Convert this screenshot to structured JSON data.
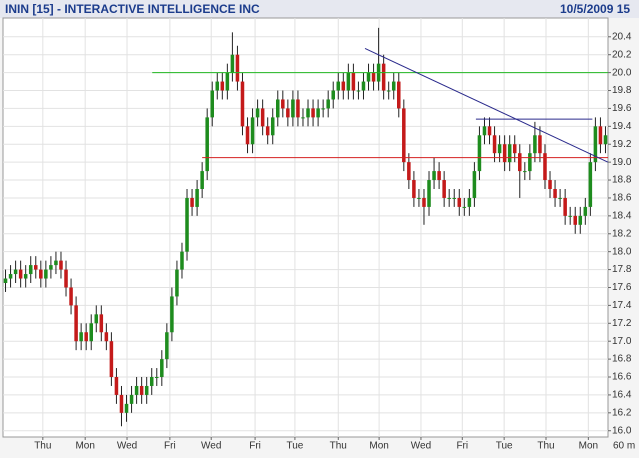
{
  "chart_data": {
    "type": "candlestick",
    "title": "ININ [15] - INTERACTIVE INTELLIGENCE INC",
    "date_label": "10/5/2009 15",
    "interval_label": "60 m",
    "up_color": "#1e8c1e",
    "down_color": "#c41a1a",
    "wick_color": "#222222",
    "grid": true,
    "xlim": [
      0,
      120
    ],
    "ylim": [
      15.93,
      20.61
    ],
    "yticks": [
      {
        "value": 16,
        "label": "16.0"
      },
      16.2,
      16.4,
      16.6,
      16.8,
      {
        "value": 17,
        "label": "17.0"
      },
      17.2,
      17.4,
      17.6,
      17.8,
      {
        "value": 18,
        "label": "18.0"
      },
      18.2,
      18.4,
      18.6,
      18.8,
      {
        "value": 19,
        "label": "19.0"
      },
      19.2,
      19.4,
      19.6,
      19.8,
      {
        "value": 20,
        "label": "20.0"
      },
      20.2,
      20.4
    ],
    "xticks": [
      {
        "value": 7.9,
        "label": "Thu"
      },
      {
        "value": 16.3,
        "label": "Mon"
      },
      {
        "value": 24.6,
        "label": "Wed"
      },
      {
        "value": 33.1,
        "label": "Fri"
      },
      {
        "value": 41.3,
        "label": "Wed"
      },
      {
        "value": 50,
        "label": "Fri"
      },
      {
        "value": 57.9,
        "label": "Tue"
      },
      {
        "value": 66.5,
        "label": "Thu"
      },
      {
        "value": 74.6,
        "label": "Mon"
      },
      {
        "value": 82.9,
        "label": "Wed"
      },
      {
        "value": 91.1,
        "label": "Fri"
      },
      {
        "value": 99.4,
        "label": "Tue"
      },
      {
        "value": 107.7,
        "label": "Thu"
      },
      {
        "value": 116.1,
        "label": "Mon"
      }
    ],
    "lines": [
      {
        "color": "#22b822",
        "x": [
          29.6,
          120
        ],
        "y": [
          20.0,
          20.0
        ]
      },
      {
        "color": "#d42020",
        "x": [
          39.5,
          120
        ],
        "y": [
          19.05,
          19.05
        ]
      },
      {
        "color": "#2a2a8c",
        "x": [
          93.8,
          116.9
        ],
        "y": [
          19.48,
          19.48
        ]
      },
      {
        "color": "#2a2a8c",
        "x": [
          71.8,
          120
        ],
        "y": [
          20.27,
          19.0
        ]
      }
    ],
    "series": [
      {
        "ohlc": [
          [
            17.65,
            17.8,
            17.55,
            17.7
          ],
          [
            17.7,
            17.85,
            17.6,
            17.75
          ],
          [
            17.75,
            17.9,
            17.65,
            17.8
          ],
          [
            17.8,
            17.9,
            17.6,
            17.7
          ],
          [
            17.7,
            17.85,
            17.6,
            17.75
          ],
          [
            17.75,
            17.95,
            17.65,
            17.85
          ],
          [
            17.85,
            17.95,
            17.7,
            17.8
          ],
          [
            17.8,
            17.9,
            17.6,
            17.7
          ],
          [
            17.7,
            17.9,
            17.6,
            17.8
          ],
          [
            17.8,
            17.95,
            17.7,
            17.85
          ],
          [
            17.85,
            18.0,
            17.75,
            17.9
          ],
          [
            17.9,
            18.0,
            17.7,
            17.8
          ],
          [
            17.8,
            17.9,
            17.5,
            17.6
          ],
          [
            17.6,
            17.7,
            17.3,
            17.4
          ],
          [
            17.4,
            17.5,
            16.9,
            17.0
          ],
          [
            17.0,
            17.2,
            16.9,
            17.1
          ],
          [
            17.1,
            17.2,
            16.9,
            17.0
          ],
          [
            17.0,
            17.3,
            16.9,
            17.2
          ],
          [
            17.2,
            17.4,
            17.1,
            17.3
          ],
          [
            17.3,
            17.4,
            17.0,
            17.1
          ],
          [
            17.1,
            17.2,
            16.9,
            17.0
          ],
          [
            17.0,
            17.1,
            16.5,
            16.6
          ],
          [
            16.6,
            16.7,
            16.3,
            16.4
          ],
          [
            16.4,
            16.5,
            16.05,
            16.2
          ],
          [
            16.2,
            16.4,
            16.1,
            16.3
          ],
          [
            16.3,
            16.5,
            16.2,
            16.4
          ],
          [
            16.4,
            16.6,
            16.3,
            16.5
          ],
          [
            16.5,
            16.6,
            16.3,
            16.4
          ],
          [
            16.4,
            16.6,
            16.3,
            16.5
          ],
          [
            16.5,
            16.7,
            16.4,
            16.6
          ],
          [
            16.6,
            16.7,
            16.5,
            16.6
          ],
          [
            16.6,
            16.9,
            16.5,
            16.8
          ],
          [
            16.8,
            17.2,
            16.7,
            17.1
          ],
          [
            17.1,
            17.6,
            17.0,
            17.5
          ],
          [
            17.5,
            17.9,
            17.4,
            17.8
          ],
          [
            17.8,
            18.1,
            17.7,
            18.0
          ],
          [
            18.0,
            18.7,
            17.9,
            18.6
          ],
          [
            18.6,
            18.7,
            18.4,
            18.5
          ],
          [
            18.5,
            18.8,
            18.4,
            18.7
          ],
          [
            18.7,
            19.0,
            18.6,
            18.9
          ],
          [
            18.9,
            19.6,
            18.8,
            19.5
          ],
          [
            19.5,
            19.9,
            19.4,
            19.8
          ],
          [
            19.8,
            20.0,
            19.7,
            19.9
          ],
          [
            19.9,
            20.0,
            19.7,
            19.8
          ],
          [
            19.8,
            20.1,
            19.7,
            20.0
          ],
          [
            20.0,
            20.45,
            19.9,
            20.2
          ],
          [
            20.2,
            20.3,
            19.8,
            19.9
          ],
          [
            19.9,
            20.0,
            19.3,
            19.4
          ],
          [
            19.4,
            19.5,
            19.1,
            19.2
          ],
          [
            19.2,
            19.6,
            19.1,
            19.5
          ],
          [
            19.5,
            19.7,
            19.4,
            19.6
          ],
          [
            19.6,
            19.7,
            19.3,
            19.4
          ],
          [
            19.4,
            19.5,
            19.2,
            19.3
          ],
          [
            19.3,
            19.6,
            19.2,
            19.5
          ],
          [
            19.5,
            19.8,
            19.4,
            19.7
          ],
          [
            19.7,
            19.8,
            19.5,
            19.6
          ],
          [
            19.6,
            19.7,
            19.4,
            19.5
          ],
          [
            19.5,
            19.8,
            19.4,
            19.7
          ],
          [
            19.7,
            19.8,
            19.4,
            19.5
          ],
          [
            19.5,
            19.6,
            19.4,
            19.5
          ],
          [
            19.5,
            19.7,
            19.4,
            19.6
          ],
          [
            19.6,
            19.7,
            19.4,
            19.5
          ],
          [
            19.5,
            19.7,
            19.4,
            19.6
          ],
          [
            19.6,
            19.7,
            19.5,
            19.6
          ],
          [
            19.6,
            19.8,
            19.5,
            19.7
          ],
          [
            19.7,
            19.9,
            19.6,
            19.8
          ],
          [
            19.8,
            20.0,
            19.7,
            19.9
          ],
          [
            19.9,
            20.0,
            19.7,
            19.8
          ],
          [
            19.8,
            20.1,
            19.7,
            20.0
          ],
          [
            20.0,
            20.1,
            19.7,
            19.8
          ],
          [
            19.8,
            19.9,
            19.7,
            19.8
          ],
          [
            19.8,
            20.0,
            19.7,
            19.9
          ],
          [
            19.9,
            20.1,
            19.8,
            20.0
          ],
          [
            20.0,
            20.1,
            19.8,
            19.9
          ],
          [
            19.9,
            20.5,
            19.8,
            20.1
          ],
          [
            20.1,
            20.2,
            19.7,
            19.8
          ],
          [
            19.8,
            19.9,
            19.7,
            19.8
          ],
          [
            19.8,
            20.0,
            19.7,
            19.9
          ],
          [
            19.9,
            20.0,
            19.5,
            19.6
          ],
          [
            19.6,
            19.7,
            18.9,
            19.0
          ],
          [
            19.0,
            19.1,
            18.7,
            18.8
          ],
          [
            18.8,
            18.9,
            18.5,
            18.6
          ],
          [
            18.6,
            18.7,
            18.5,
            18.6
          ],
          [
            18.6,
            18.7,
            18.3,
            18.5
          ],
          [
            18.5,
            18.9,
            18.4,
            18.8
          ],
          [
            18.8,
            19.05,
            18.7,
            18.9
          ],
          [
            18.9,
            19.0,
            18.7,
            18.8
          ],
          [
            18.8,
            18.9,
            18.5,
            18.6
          ],
          [
            18.6,
            18.7,
            18.5,
            18.6
          ],
          [
            18.6,
            18.7,
            18.5,
            18.6
          ],
          [
            18.6,
            18.7,
            18.4,
            18.5
          ],
          [
            18.5,
            18.6,
            18.4,
            18.5
          ],
          [
            18.5,
            18.7,
            18.4,
            18.6
          ],
          [
            18.6,
            19.0,
            18.5,
            18.9
          ],
          [
            18.9,
            19.4,
            18.8,
            19.3
          ],
          [
            19.3,
            19.5,
            19.2,
            19.4
          ],
          [
            19.4,
            19.5,
            19.2,
            19.3
          ],
          [
            19.3,
            19.4,
            19.0,
            19.1
          ],
          [
            19.1,
            19.3,
            19.0,
            19.2
          ],
          [
            19.2,
            19.3,
            18.9,
            19.0
          ],
          [
            19.0,
            19.3,
            18.9,
            19.2
          ],
          [
            19.2,
            19.3,
            19.0,
            19.1
          ],
          [
            19.1,
            19.2,
            18.6,
            18.9
          ],
          [
            18.9,
            19.0,
            18.8,
            18.9
          ],
          [
            18.9,
            19.2,
            18.8,
            19.1
          ],
          [
            19.1,
            19.45,
            19.0,
            19.3
          ],
          [
            19.3,
            19.4,
            19.0,
            19.1
          ],
          [
            19.1,
            19.2,
            18.7,
            18.8
          ],
          [
            18.8,
            18.9,
            18.6,
            18.7
          ],
          [
            18.7,
            18.8,
            18.5,
            18.6
          ],
          [
            18.6,
            18.7,
            18.5,
            18.6
          ],
          [
            18.6,
            18.7,
            18.3,
            18.4
          ],
          [
            18.4,
            18.5,
            18.3,
            18.4
          ],
          [
            18.4,
            18.5,
            18.2,
            18.3
          ],
          [
            18.3,
            18.5,
            18.2,
            18.4
          ],
          [
            18.4,
            18.6,
            18.3,
            18.5
          ],
          [
            18.5,
            19.1,
            18.4,
            19.0
          ],
          [
            19.0,
            19.5,
            18.9,
            19.4
          ],
          [
            19.4,
            19.5,
            19.1,
            19.2
          ],
          [
            19.2,
            19.4,
            19.1,
            19.3
          ]
        ]
      }
    ]
  }
}
